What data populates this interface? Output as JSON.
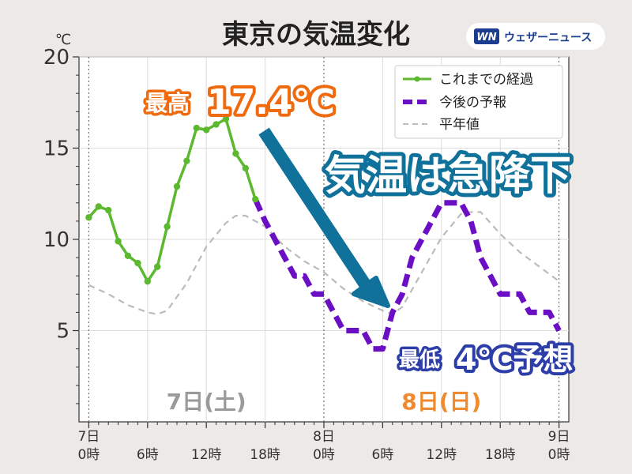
{
  "brand": {
    "logo_mark": "WN",
    "name": "ウェザーニュース"
  },
  "chart_data": {
    "type": "line",
    "title": "東京の気温変化",
    "ylabel": "℃",
    "ylim": [
      0,
      20
    ],
    "yticks": [
      5,
      10,
      15,
      20
    ],
    "xlim": [
      -1,
      49
    ],
    "x_unit": "hours from 7日 0時",
    "xticks": [
      {
        "x": 0,
        "line1": "7日",
        "line2": "0時"
      },
      {
        "x": 6,
        "line1": "",
        "line2": "6時"
      },
      {
        "x": 12,
        "line1": "",
        "line2": "12時"
      },
      {
        "x": 18,
        "line1": "",
        "line2": "18時"
      },
      {
        "x": 24,
        "line1": "8日",
        "line2": "0時"
      },
      {
        "x": 30,
        "line1": "",
        "line2": "6時"
      },
      {
        "x": 36,
        "line1": "",
        "line2": "12時"
      },
      {
        "x": 42,
        "line1": "",
        "line2": "18時"
      },
      {
        "x": 48,
        "line1": "9日",
        "line2": "0時"
      }
    ],
    "day_labels": [
      {
        "text": "7日(土)",
        "x": 12,
        "color": "#9a9a9a"
      },
      {
        "text": "8日(日)",
        "x": 36,
        "color": "#f08a2e"
      }
    ],
    "legend_position": "top-right",
    "series": [
      {
        "name": "これまでの経過",
        "style": "solid-markers",
        "color": "#5cb82e",
        "x": [
          0,
          1,
          2,
          3,
          4,
          5,
          6,
          7,
          8,
          9,
          10,
          11,
          12,
          13,
          14,
          15,
          16,
          17
        ],
        "y": [
          11.2,
          11.8,
          11.6,
          9.9,
          9.1,
          8.7,
          7.7,
          8.5,
          10.7,
          12.9,
          14.3,
          16.1,
          16.0,
          16.3,
          16.6,
          14.7,
          13.9,
          12.2
        ]
      },
      {
        "name": "今後の予報",
        "style": "dashed-thick",
        "color": "#6a0fc4",
        "x": [
          17,
          18,
          19,
          20,
          21,
          22,
          23,
          24,
          25,
          26,
          27,
          28,
          29,
          30,
          31,
          32,
          33,
          34,
          35,
          36,
          37,
          38,
          39,
          40,
          41,
          42,
          43,
          44,
          45,
          46,
          47,
          48
        ],
        "y": [
          12.2,
          11,
          10,
          9,
          8,
          8,
          7,
          7,
          6,
          5,
          5,
          5,
          4,
          4,
          6,
          7,
          9,
          10,
          11,
          12,
          12,
          12,
          11,
          9,
          8,
          7,
          7,
          7,
          6,
          6,
          6,
          5
        ]
      },
      {
        "name": "平年値",
        "style": "dashed-thin",
        "color": "#bbbbbb",
        "x": [
          0,
          2,
          4,
          6,
          7,
          8,
          10,
          12,
          14,
          15,
          16,
          18,
          20,
          22,
          24,
          26,
          28,
          30,
          31,
          32,
          34,
          36,
          38,
          39,
          40,
          42,
          44,
          46,
          48
        ],
        "y": [
          7.5,
          7,
          6.4,
          6,
          5.9,
          6.1,
          7.6,
          9.6,
          10.9,
          11.3,
          11.3,
          10.7,
          9.6,
          8.8,
          8.2,
          7.3,
          6.6,
          6.1,
          5.9,
          6.3,
          8.2,
          10.1,
          11.4,
          11.5,
          11.5,
          10.3,
          9.3,
          8.5,
          7.7
        ]
      }
    ],
    "annotations": {
      "max": {
        "prefix": "最高",
        "value": "17.4℃"
      },
      "headline": "気温は急降下",
      "min": {
        "prefix": "最低",
        "value": "4℃予想"
      }
    }
  }
}
